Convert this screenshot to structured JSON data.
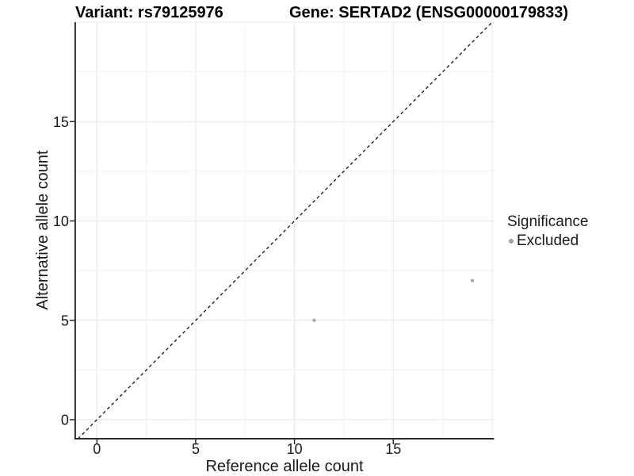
{
  "header": {
    "title_left": "Variant: rs79125976",
    "title_right": "Gene: SERTAD2 (ENSG00000179833)"
  },
  "chart_data": {
    "type": "scatter",
    "xlabel": "Reference allele count",
    "ylabel": "Alternative allele count",
    "xlim": [
      -1.1,
      20.1
    ],
    "ylim": [
      -0.96,
      20.0
    ],
    "xticks": [
      0,
      5,
      10,
      15
    ],
    "yticks": [
      0,
      5,
      10,
      15
    ],
    "grid": {
      "major_step": 5,
      "minor_step": 2.5,
      "major_color": "#e7e7e7",
      "minor_color": "#f2f2f2"
    },
    "identity_line": {
      "equation": "y = x",
      "style": "dashed",
      "color": "#141414"
    },
    "series": [
      {
        "name": "Excluded",
        "color": "#a6a6a6",
        "points": [
          [
            11,
            5
          ],
          [
            19,
            7
          ]
        ]
      }
    ],
    "legend": {
      "title": "Significance",
      "position": "right",
      "items": [
        {
          "label": "Excluded",
          "color": "#a0a0a0"
        }
      ]
    },
    "axis_color": "#2b2b2b"
  }
}
